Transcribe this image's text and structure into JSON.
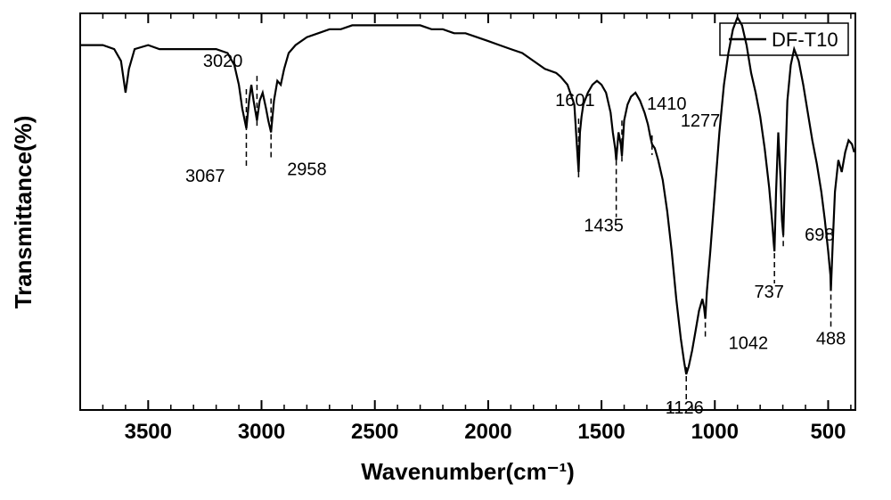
{
  "chart": {
    "type": "line",
    "title": "",
    "xlabel": "Wavenumber(cm⁻¹)",
    "ylabel": "Transmittance(%)",
    "x_reversed": true,
    "xlim": [
      3800,
      380
    ],
    "x_ticks_major": [
      3500,
      3000,
      2500,
      2000,
      1500,
      1000,
      500
    ],
    "x_ticks_minor_step": 100,
    "background_color": "#ffffff",
    "line_color": "#000000",
    "axis_color": "#000000",
    "tick_fontsize": 24,
    "label_fontsize": 26,
    "legend": {
      "label": "DF-T10",
      "position": "top-right"
    },
    "peaks": [
      {
        "wn": 3067,
        "label": "3067",
        "label_pos": "below"
      },
      {
        "wn": 3020,
        "label": "3020",
        "label_pos": "above"
      },
      {
        "wn": 2958,
        "label": "2958",
        "label_pos": "below-right"
      },
      {
        "wn": 1601,
        "label": "1601",
        "label_pos": "above"
      },
      {
        "wn": 1435,
        "label": "1435",
        "label_pos": "below"
      },
      {
        "wn": 1410,
        "label": "1410",
        "label_pos": "above-right"
      },
      {
        "wn": 1277,
        "label": "1277",
        "label_pos": "right"
      },
      {
        "wn": 1126,
        "label": "1126",
        "label_pos": "below"
      },
      {
        "wn": 1042,
        "label": "1042",
        "label_pos": "below-right"
      },
      {
        "wn": 737,
        "label": "737",
        "label_pos": "below"
      },
      {
        "wn": 698,
        "label": "698",
        "label_pos": "right"
      },
      {
        "wn": 488,
        "label": "488",
        "label_pos": "below"
      }
    ],
    "spectrum": [
      [
        3800,
        92
      ],
      [
        3750,
        92
      ],
      [
        3700,
        92
      ],
      [
        3650,
        91
      ],
      [
        3620,
        88
      ],
      [
        3600,
        80
      ],
      [
        3585,
        86
      ],
      [
        3560,
        91
      ],
      [
        3500,
        92
      ],
      [
        3450,
        91
      ],
      [
        3400,
        91
      ],
      [
        3350,
        91
      ],
      [
        3300,
        91
      ],
      [
        3250,
        91
      ],
      [
        3200,
        91
      ],
      [
        3150,
        90
      ],
      [
        3120,
        87
      ],
      [
        3100,
        82
      ],
      [
        3085,
        76
      ],
      [
        3067,
        71
      ],
      [
        3055,
        78
      ],
      [
        3045,
        82
      ],
      [
        3035,
        78
      ],
      [
        3020,
        73
      ],
      [
        3008,
        78
      ],
      [
        2995,
        80
      ],
      [
        2980,
        76
      ],
      [
        2970,
        73
      ],
      [
        2958,
        70
      ],
      [
        2945,
        78
      ],
      [
        2930,
        83
      ],
      [
        2915,
        82
      ],
      [
        2900,
        86
      ],
      [
        2880,
        90
      ],
      [
        2850,
        92
      ],
      [
        2800,
        94
      ],
      [
        2750,
        95
      ],
      [
        2700,
        96
      ],
      [
        2650,
        96
      ],
      [
        2600,
        97
      ],
      [
        2550,
        97
      ],
      [
        2500,
        97
      ],
      [
        2450,
        97
      ],
      [
        2400,
        97
      ],
      [
        2350,
        97
      ],
      [
        2300,
        97
      ],
      [
        2250,
        96
      ],
      [
        2200,
        96
      ],
      [
        2150,
        95
      ],
      [
        2100,
        95
      ],
      [
        2050,
        94
      ],
      [
        2000,
        93
      ],
      [
        1950,
        92
      ],
      [
        1900,
        91
      ],
      [
        1850,
        90
      ],
      [
        1800,
        88
      ],
      [
        1750,
        86
      ],
      [
        1700,
        85
      ],
      [
        1680,
        84
      ],
      [
        1650,
        82
      ],
      [
        1620,
        77
      ],
      [
        1610,
        68
      ],
      [
        1601,
        60
      ],
      [
        1595,
        70
      ],
      [
        1588,
        74
      ],
      [
        1580,
        77
      ],
      [
        1560,
        80
      ],
      [
        1540,
        82
      ],
      [
        1520,
        83
      ],
      [
        1500,
        82
      ],
      [
        1480,
        80
      ],
      [
        1460,
        75
      ],
      [
        1450,
        70
      ],
      [
        1440,
        66
      ],
      [
        1435,
        63
      ],
      [
        1425,
        70
      ],
      [
        1415,
        67
      ],
      [
        1410,
        64
      ],
      [
        1400,
        73
      ],
      [
        1385,
        77
      ],
      [
        1370,
        79
      ],
      [
        1350,
        80
      ],
      [
        1330,
        78
      ],
      [
        1310,
        75
      ],
      [
        1295,
        72
      ],
      [
        1285,
        69
      ],
      [
        1277,
        67
      ],
      [
        1265,
        66
      ],
      [
        1250,
        63
      ],
      [
        1230,
        58
      ],
      [
        1210,
        50
      ],
      [
        1190,
        40
      ],
      [
        1170,
        28
      ],
      [
        1150,
        18
      ],
      [
        1135,
        12
      ],
      [
        1126,
        9
      ],
      [
        1115,
        11
      ],
      [
        1100,
        15
      ],
      [
        1085,
        20
      ],
      [
        1070,
        25
      ],
      [
        1055,
        28
      ],
      [
        1048,
        26
      ],
      [
        1042,
        23
      ],
      [
        1035,
        30
      ],
      [
        1020,
        40
      ],
      [
        1000,
        55
      ],
      [
        980,
        70
      ],
      [
        960,
        82
      ],
      [
        940,
        90
      ],
      [
        920,
        96
      ],
      [
        900,
        99
      ],
      [
        880,
        97
      ],
      [
        860,
        92
      ],
      [
        840,
        85
      ],
      [
        820,
        80
      ],
      [
        800,
        74
      ],
      [
        780,
        66
      ],
      [
        760,
        56
      ],
      [
        748,
        48
      ],
      [
        740,
        42
      ],
      [
        737,
        40
      ],
      [
        730,
        55
      ],
      [
        720,
        70
      ],
      [
        710,
        58
      ],
      [
        704,
        48
      ],
      [
        698,
        44
      ],
      [
        690,
        60
      ],
      [
        680,
        78
      ],
      [
        665,
        87
      ],
      [
        650,
        91
      ],
      [
        630,
        88
      ],
      [
        610,
        82
      ],
      [
        590,
        75
      ],
      [
        570,
        68
      ],
      [
        550,
        62
      ],
      [
        530,
        55
      ],
      [
        515,
        48
      ],
      [
        500,
        40
      ],
      [
        490,
        34
      ],
      [
        488,
        30
      ],
      [
        480,
        42
      ],
      [
        470,
        55
      ],
      [
        455,
        63
      ],
      [
        440,
        60
      ],
      [
        425,
        65
      ],
      [
        410,
        68
      ],
      [
        395,
        67
      ],
      [
        385,
        65
      ]
    ]
  }
}
